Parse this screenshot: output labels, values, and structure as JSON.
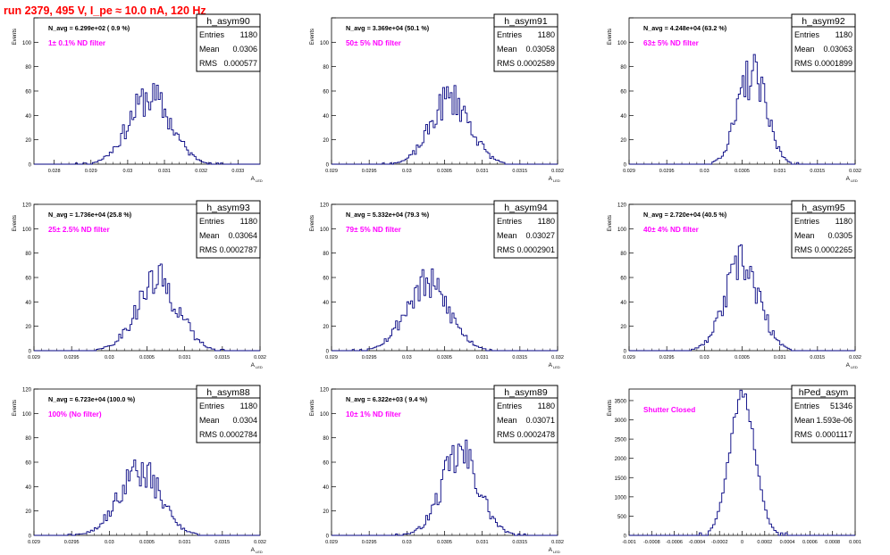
{
  "page": {
    "title": "run 2379,   495 V, I_pe ≈ 10.0 nA, 120 Hz",
    "title_color": "#ff0000",
    "histogram_color": "#000080",
    "annotation_color": "#ff00ff"
  },
  "chart_data": [
    {
      "type": "histogram",
      "name": "h_asym90",
      "nav_label": "N_avg = 6.299e+02 ( 0.9 %)",
      "filter_label": "1± 0.1% ND filter",
      "stats": [
        {
          "k": "Entries",
          "v": "1180"
        },
        {
          "k": "Mean",
          "v": "0.0306"
        },
        {
          "k": "RMS",
          "v": "0.000577"
        }
      ],
      "ylabel": "Events",
      "xlabel": "A",
      "xlabel_sub": "LED",
      "xlim": [
        0.02745,
        0.0336
      ],
      "ylim": [
        0,
        120
      ],
      "xticks": [
        0.028,
        0.029,
        0.03,
        0.031,
        0.032,
        0.033
      ],
      "xtick_labels": [
        "0.028",
        "0.029",
        "0.03",
        "0.031",
        "0.032",
        "0.033"
      ],
      "yticks": [
        0,
        20,
        40,
        60,
        80,
        100,
        120
      ],
      "yticks_shown": [
        0,
        20,
        40,
        60,
        80,
        100
      ],
      "mean": 0.0306,
      "rms": 0.000577,
      "entries": 1180,
      "nbins": 30,
      "bins": 120,
      "peak": 55,
      "seed": 11
    },
    {
      "type": "histogram",
      "name": "h_asym91",
      "nav_label": "N_avg = 3.369e+04 (50.1 %)",
      "filter_label": "50± 5% ND filter",
      "stats": [
        {
          "k": "Entries",
          "v": "1180"
        },
        {
          "k": "Mean",
          "v": "0.03058"
        },
        {
          "k": "RMS",
          "v": "0.0002589"
        }
      ],
      "ylabel": "Events",
      "xlabel": "A",
      "xlabel_sub": "LED",
      "xlim": [
        0.029,
        0.032
      ],
      "ylim": [
        0,
        120
      ],
      "xticks": [
        0.029,
        0.0295,
        0.03,
        0.0305,
        0.031,
        0.0315,
        0.032
      ],
      "xtick_labels": [
        "0.029",
        "0.0295",
        "0.03",
        "0.0305",
        "0.031",
        "0.0315",
        "0.032"
      ],
      "yticks": [
        0,
        20,
        40,
        60,
        80,
        100,
        120
      ],
      "yticks_shown": [
        0,
        20,
        40,
        60,
        80,
        100
      ],
      "mean": 0.03058,
      "rms": 0.0002589,
      "entries": 1180,
      "nbins": 30,
      "bins": 120,
      "peak": 54,
      "seed": 23
    },
    {
      "type": "histogram",
      "name": "h_asym92",
      "nav_label": "N_avg = 4.248e+04 (63.2 %)",
      "filter_label": "63± 5% ND filter",
      "stats": [
        {
          "k": "Entries",
          "v": "1180"
        },
        {
          "k": "Mean",
          "v": "0.03063"
        },
        {
          "k": "RMS",
          "v": "0.0001899"
        }
      ],
      "ylabel": "Events",
      "xlabel": "A",
      "xlabel_sub": "LED",
      "xlim": [
        0.029,
        0.032
      ],
      "ylim": [
        0,
        120
      ],
      "xticks": [
        0.029,
        0.0295,
        0.03,
        0.0305,
        0.031,
        0.0315,
        0.032
      ],
      "xtick_labels": [
        "0.029",
        "0.0295",
        "0.03",
        "0.0305",
        "0.031",
        "0.0315",
        "0.032"
      ],
      "yticks": [
        0,
        20,
        40,
        60,
        80,
        100,
        120
      ],
      "yticks_shown": [
        0,
        20,
        40,
        60,
        80,
        100
      ],
      "mean": 0.03063,
      "rms": 0.0001899,
      "entries": 1180,
      "nbins": 30,
      "bins": 120,
      "peak": 73,
      "seed": 37
    },
    {
      "type": "histogram",
      "name": "h_asym93",
      "nav_label": "N_avg = 1.736e+04 (25.8 %)",
      "filter_label": "25± 2.5% ND filter",
      "stats": [
        {
          "k": "Entries",
          "v": "1180"
        },
        {
          "k": "Mean",
          "v": "0.03064"
        },
        {
          "k": "RMS",
          "v": "0.0002787"
        }
      ],
      "ylabel": "Events",
      "xlabel": "A",
      "xlabel_sub": "LED",
      "xlim": [
        0.029,
        0.032
      ],
      "ylim": [
        0,
        120
      ],
      "xticks": [
        0.029,
        0.0295,
        0.03,
        0.0305,
        0.031,
        0.0315,
        0.032
      ],
      "xtick_labels": [
        "0.029",
        "0.0295",
        "0.03",
        "0.0305",
        "0.031",
        "0.0315",
        "0.032"
      ],
      "yticks": [
        0,
        20,
        40,
        60,
        80,
        100,
        120
      ],
      "yticks_shown": [
        0,
        20,
        40,
        60,
        80,
        100,
        120
      ],
      "mean": 0.03064,
      "rms": 0.0002787,
      "entries": 1180,
      "nbins": 30,
      "bins": 120,
      "peak": 57,
      "seed": 41
    },
    {
      "type": "histogram",
      "name": "h_asym94",
      "nav_label": "N_avg = 5.332e+04 (79.3 %)",
      "filter_label": "79± 5% ND filter",
      "stats": [
        {
          "k": "Entries",
          "v": "1180"
        },
        {
          "k": "Mean",
          "v": "0.03027"
        },
        {
          "k": "RMS",
          "v": "0.0002901"
        }
      ],
      "ylabel": "Events",
      "xlabel": "A",
      "xlabel_sub": "LED",
      "xlim": [
        0.029,
        0.032
      ],
      "ylim": [
        0,
        120
      ],
      "xticks": [
        0.029,
        0.0295,
        0.03,
        0.0305,
        0.031,
        0.0315,
        0.032
      ],
      "xtick_labels": [
        "0.029",
        "0.0295",
        "0.03",
        "0.0305",
        "0.031",
        "0.0315",
        "0.032"
      ],
      "yticks": [
        0,
        20,
        40,
        60,
        80,
        100,
        120
      ],
      "yticks_shown": [
        0,
        20,
        40,
        60,
        80,
        100,
        120
      ],
      "mean": 0.03027,
      "rms": 0.0002901,
      "entries": 1180,
      "nbins": 30,
      "bins": 120,
      "peak": 54,
      "seed": 53
    },
    {
      "type": "histogram",
      "name": "h_asym95",
      "nav_label": "N_avg = 2.720e+04 (40.5 %)",
      "filter_label": "40± 4% ND filter",
      "stats": [
        {
          "k": "Entries",
          "v": "1180"
        },
        {
          "k": "Mean",
          "v": "0.0305"
        },
        {
          "k": "RMS",
          "v": "0.0002265"
        }
      ],
      "ylabel": "Events",
      "xlabel": "A",
      "xlabel_sub": "LED",
      "xlim": [
        0.029,
        0.032
      ],
      "ylim": [
        0,
        120
      ],
      "xticks": [
        0.029,
        0.0295,
        0.03,
        0.0305,
        0.031,
        0.0315,
        0.032
      ],
      "xtick_labels": [
        "0.029",
        "0.0295",
        "0.03",
        "0.0305",
        "0.031",
        "0.0315",
        "0.032"
      ],
      "yticks": [
        0,
        20,
        40,
        60,
        80,
        100,
        120
      ],
      "yticks_shown": [
        0,
        20,
        40,
        60,
        80,
        100,
        120
      ],
      "mean": 0.0305,
      "rms": 0.0002265,
      "entries": 1180,
      "nbins": 30,
      "bins": 120,
      "peak": 70,
      "seed": 67
    },
    {
      "type": "histogram",
      "name": "h_asym88",
      "nav_label": "N_avg = 6.723e+04 (100.0 %)",
      "filter_label": "100% (No filter)",
      "stats": [
        {
          "k": "Entries",
          "v": "1180"
        },
        {
          "k": "Mean",
          "v": "0.0304"
        },
        {
          "k": "RMS",
          "v": "0.0002784"
        }
      ],
      "ylabel": "Events",
      "xlabel": "A",
      "xlabel_sub": "LED",
      "xlim": [
        0.029,
        0.032
      ],
      "ylim": [
        0,
        120
      ],
      "xticks": [
        0.029,
        0.0295,
        0.03,
        0.0305,
        0.031,
        0.0315,
        0.032
      ],
      "xtick_labels": [
        "0.029",
        "0.0295",
        "0.03",
        "0.0305",
        "0.031",
        "0.0315",
        "0.032"
      ],
      "yticks": [
        0,
        20,
        40,
        60,
        80,
        100,
        120
      ],
      "yticks_shown": [
        0,
        20,
        40,
        60,
        80,
        100,
        120
      ],
      "mean": 0.0304,
      "rms": 0.0002784,
      "entries": 1180,
      "nbins": 30,
      "bins": 120,
      "peak": 53,
      "seed": 79
    },
    {
      "type": "histogram",
      "name": "h_asym89",
      "nav_label": "N_avg = 6.322e+03 ( 9.4 %)",
      "filter_label": "10± 1% ND filter",
      "stats": [
        {
          "k": "Entries",
          "v": "1180"
        },
        {
          "k": "Mean",
          "v": "0.03071"
        },
        {
          "k": "RMS",
          "v": "0.0002478"
        }
      ],
      "ylabel": "Events",
      "xlabel": "A",
      "xlabel_sub": "LED",
      "xlim": [
        0.029,
        0.032
      ],
      "ylim": [
        0,
        120
      ],
      "xticks": [
        0.029,
        0.0295,
        0.03,
        0.0305,
        0.031,
        0.0315,
        0.032
      ],
      "xtick_labels": [
        "0.029",
        "0.0295",
        "0.03",
        "0.0305",
        "0.031",
        "0.0315",
        "0.032"
      ],
      "yticks": [
        0,
        20,
        40,
        60,
        80,
        100,
        120
      ],
      "yticks_shown": [
        0,
        20,
        40,
        60,
        80,
        100,
        120
      ],
      "mean": 0.03071,
      "rms": 0.0002478,
      "entries": 1180,
      "nbins": 30,
      "bins": 120,
      "peak": 66,
      "seed": 97
    },
    {
      "type": "histogram",
      "name": "hPed_asym",
      "nav_label": "",
      "filter_label": "Shutter Closed",
      "stats": [
        {
          "k": "Entries",
          "v": "51346"
        },
        {
          "k": "Mean",
          "v": "1.593e-06"
        },
        {
          "k": "RMS",
          "v": "0.0001117"
        }
      ],
      "ylabel": "Events",
      "xlabel": "",
      "xlabel_sub": "",
      "xlim": [
        -0.001,
        0.001
      ],
      "ylim": [
        0,
        3800
      ],
      "xticks": [
        -0.001,
        -0.0008,
        -0.0006,
        -0.0004,
        -0.0002,
        0,
        0.0002,
        0.0004,
        0.0006,
        0.0008,
        0.001
      ],
      "xtick_labels": [
        "-0.001",
        "-0.0008",
        "-0.0006",
        "-0.0004",
        "-0.0002",
        "0",
        "0.0002",
        "0.0004",
        "0.0006",
        "0.0008",
        "0.001"
      ],
      "yticks": [
        0,
        500,
        1000,
        1500,
        2000,
        2500,
        3000,
        3500
      ],
      "yticks_shown": [
        0,
        500,
        1000,
        1500,
        2000,
        2500,
        3000,
        3500
      ],
      "mean": 1.6e-06,
      "rms": 0.0001117,
      "entries": 51346,
      "nbins": 30,
      "bins": 100,
      "peak": 3650,
      "seed": 5
    }
  ]
}
